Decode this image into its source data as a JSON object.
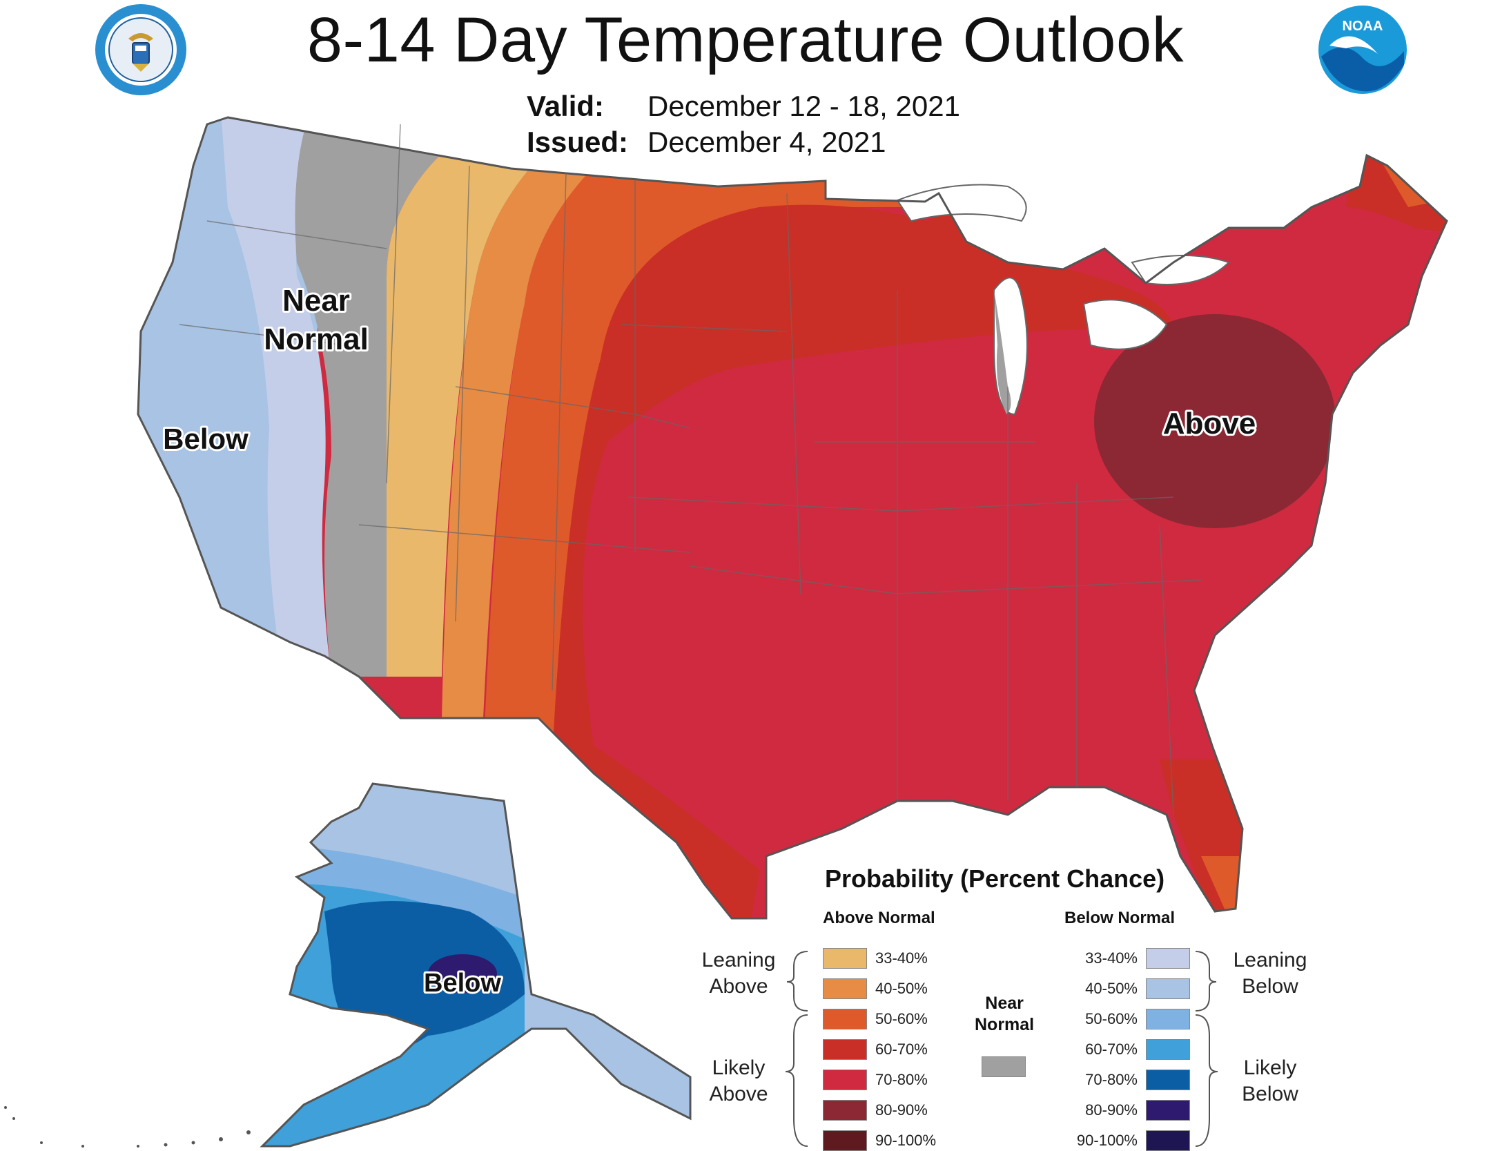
{
  "title": "8-14 Day Temperature Outlook",
  "valid": {
    "label": "Valid:",
    "value": "December 12 - 18, 2021"
  },
  "issued": {
    "label": "Issued:",
    "value": "December 4, 2021"
  },
  "logos": {
    "commerce": "department-of-commerce-seal",
    "noaa": "NOAA"
  },
  "map_labels": {
    "near_normal_1": "Near",
    "near_normal_2": "Normal",
    "below_west": "Below",
    "above_east": "Above",
    "below_alaska": "Below"
  },
  "legend": {
    "title": "Probability (Percent Chance)",
    "above_header": "Above Normal",
    "below_header": "Below Normal",
    "near_label_1": "Near",
    "near_label_2": "Normal",
    "near_color": "#a0a0a0",
    "leaning_above": [
      "Leaning",
      "Above"
    ],
    "likely_above": [
      "Likely",
      "Above"
    ],
    "leaning_below": [
      "Leaning",
      "Below"
    ],
    "likely_below": [
      "Likely",
      "Below"
    ],
    "above_items": [
      {
        "label": "33-40%",
        "color": "#e9b86a"
      },
      {
        "label": "40-50%",
        "color": "#e68c45"
      },
      {
        "label": "50-60%",
        "color": "#df5a2a"
      },
      {
        "label": "60-70%",
        "color": "#c92f26"
      },
      {
        "label": "70-80%",
        "color": "#cf2a40"
      },
      {
        "label": "80-90%",
        "color": "#8b2834"
      },
      {
        "label": "90-100%",
        "color": "#5e1a1f"
      }
    ],
    "below_items": [
      {
        "label": "33-40%",
        "color": "#c5cee8"
      },
      {
        "label": "40-50%",
        "color": "#a8c3e3"
      },
      {
        "label": "50-60%",
        "color": "#7fb2e2"
      },
      {
        "label": "60-70%",
        "color": "#3fa0da"
      },
      {
        "label": "70-80%",
        "color": "#0c5ea4"
      },
      {
        "label": "80-90%",
        "color": "#2e1a6e"
      },
      {
        "label": "90-100%",
        "color": "#1e1652"
      }
    ]
  }
}
